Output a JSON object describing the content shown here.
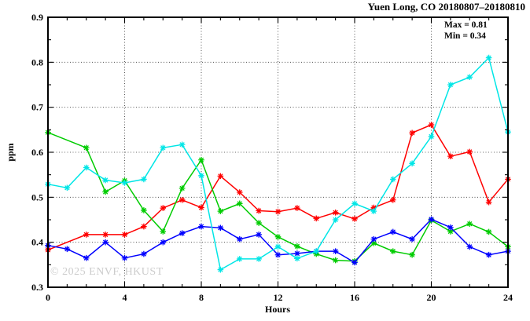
{
  "header": {
    "title": "Yuen Long, CO 20180807–20180810"
  },
  "annotation": {
    "max_label": "Max = 0.81",
    "min_label": "Min = 0.34"
  },
  "watermark": "© 2025 ENVF, HKUST",
  "colors": {
    "frame": "#000000",
    "grid": "#3a3a3a",
    "watermark": "#cccccc",
    "red": "#ff0000",
    "green": "#00cc00",
    "blue": "#0000ff",
    "cyan": "#00e6e6"
  },
  "chart_data": {
    "type": "line",
    "title": "Yuen Long, CO 20180807–20180810",
    "xlabel": "Hours",
    "ylabel": "ppm",
    "xlim": [
      0,
      24
    ],
    "ylim": [
      0.3,
      0.9
    ],
    "grid": {
      "x_lines": [
        4,
        8,
        12,
        16,
        20
      ],
      "y_lines": [
        0.4,
        0.5,
        0.6,
        0.7,
        0.8
      ]
    },
    "x_major_ticks": {
      "values": [
        0,
        4,
        8,
        12,
        16,
        20,
        24
      ],
      "labels": [
        "0",
        "4",
        "8",
        "12",
        "16",
        "20",
        "24"
      ]
    },
    "y_major_ticks": {
      "values": [
        0.3,
        0.4,
        0.5,
        0.6,
        0.7,
        0.8,
        0.9
      ],
      "labels": [
        "0.3",
        "0.4",
        "0.5",
        "0.6",
        "0.7",
        "0.8",
        "0.9"
      ]
    },
    "x_minor_step": 1,
    "y_minor_step": 0.05,
    "legend": "none",
    "marker": "star",
    "x": [
      0,
      1,
      2,
      3,
      4,
      5,
      6,
      7,
      8,
      9,
      10,
      11,
      12,
      13,
      14,
      15,
      16,
      17,
      18,
      19,
      20,
      21,
      22,
      23,
      24
    ],
    "series": [
      {
        "name": "red",
        "color": "#ff0000",
        "values": [
          0.383,
          null,
          0.417,
          0.417,
          0.417,
          0.435,
          0.476,
          0.494,
          0.477,
          0.547,
          0.511,
          0.47,
          0.468,
          0.476,
          0.453,
          0.466,
          0.452,
          0.477,
          0.494,
          0.643,
          0.661,
          0.591,
          0.601,
          0.489,
          0.54
        ]
      },
      {
        "name": "green",
        "color": "#00cc00",
        "values": [
          0.644,
          null,
          0.61,
          0.512,
          0.537,
          0.471,
          0.424,
          0.52,
          0.583,
          0.469,
          0.486,
          0.443,
          0.412,
          0.391,
          0.374,
          0.36,
          0.358,
          0.398,
          0.38,
          0.372,
          0.449,
          0.424,
          0.441,
          0.423,
          0.39
        ]
      },
      {
        "name": "blue",
        "color": "#0000ff",
        "values": [
          0.393,
          0.385,
          0.365,
          0.4,
          0.365,
          0.374,
          0.4,
          0.42,
          0.435,
          0.432,
          0.407,
          0.417,
          0.372,
          0.375,
          0.38,
          0.38,
          0.355,
          0.407,
          0.423,
          0.407,
          0.451,
          0.433,
          0.39,
          0.372,
          0.38
        ]
      },
      {
        "name": "cyan",
        "color": "#00e6e6",
        "values": [
          0.529,
          0.521,
          0.566,
          0.538,
          0.532,
          0.54,
          0.61,
          0.617,
          0.548,
          0.339,
          0.363,
          0.363,
          0.39,
          0.364,
          0.38,
          0.45,
          0.486,
          0.469,
          0.54,
          0.575,
          0.635,
          0.75,
          0.767,
          0.81,
          0.645
        ]
      }
    ],
    "annotations": [
      "Max = 0.81",
      "Min = 0.34"
    ]
  }
}
